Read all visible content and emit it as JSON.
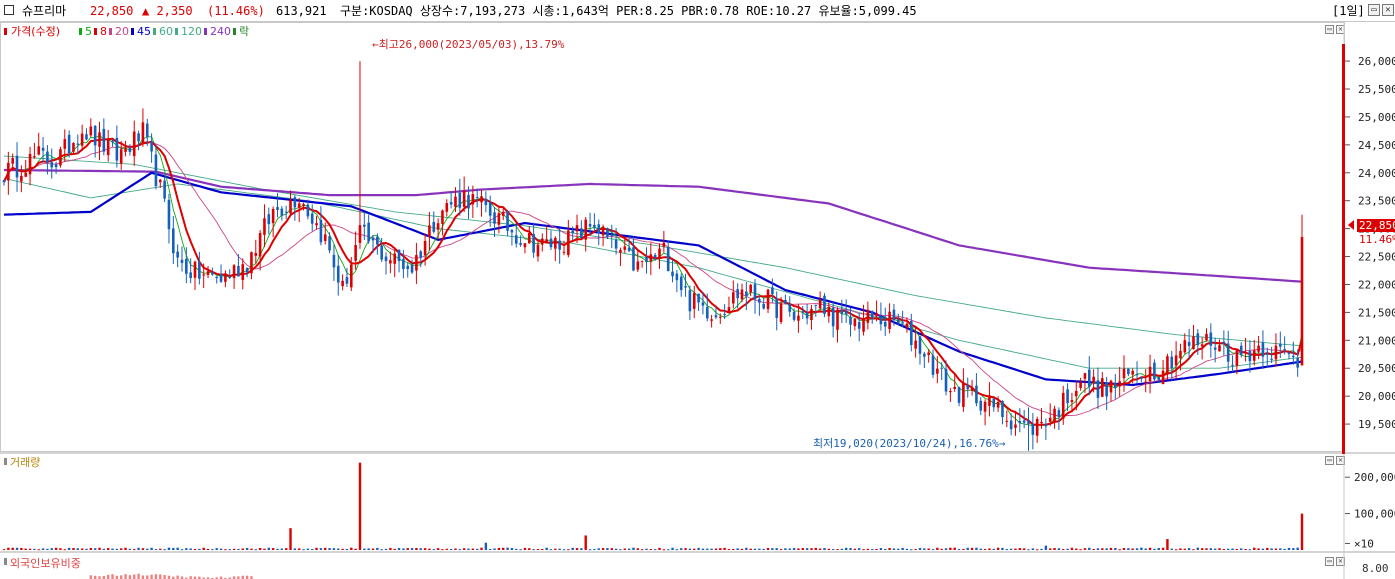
{
  "header": {
    "stock_name": "슈프리마",
    "price": "22,850",
    "change": "▲ 2,350",
    "change_pct": "(11.46%)",
    "volume": "613,921",
    "info": "구분:KOSDAQ 상장수:7,193,273 시총:1,643억 PER:8.25 PBR:0.78 ROE:10.27 유보율:5,099.45",
    "period": "[1일]"
  },
  "colors": {
    "up": "#dd0000",
    "down": "#1560bd",
    "ma5": "#11aa11",
    "ma20": "#cc4488",
    "ma45": "#0000cc",
    "ma60": "#44aa88",
    "ma240": "#8833bb",
    "current": "#dd0000",
    "accent_header": "#dd0000"
  },
  "chart_data": [
    {
      "type": "candlestick",
      "legend": [
        {
          "label": "가격(수정)",
          "color": "#dd0000"
        },
        {
          "label": "5",
          "color": "#11aa11"
        },
        {
          "label": "8",
          "color": "#dd0000"
        },
        {
          "label": "20",
          "color": "#cc4488"
        },
        {
          "label": "45",
          "color": "#0000cc"
        },
        {
          "label": "60",
          "color": "#44aa88"
        },
        {
          "label": "120",
          "color": "#44aa88"
        },
        {
          "label": "240",
          "color": "#8833bb"
        },
        {
          "label": "락",
          "color": "#228822"
        }
      ],
      "y_ticks": [
        "26,000",
        "25,500",
        "25,000",
        "24,500",
        "24,000",
        "23,500",
        "23,000",
        "22,500",
        "22,000",
        "21,500",
        "21,000",
        "20,500",
        "20,000",
        "19,500"
      ],
      "y_range": [
        19000,
        26700
      ],
      "current_price_label": "22,850",
      "current_pct_label": "11.46%",
      "high_annotation": "←최고26,000(2023/05/03),13.79%",
      "high_value": 26000,
      "low_annotation": "최저19,020(2023/10/24),16.76%→",
      "low_value": 19020,
      "anchors": [
        [
          0,
          24000
        ],
        [
          8,
          24300
        ],
        [
          12,
          24200
        ],
        [
          18,
          24800
        ],
        [
          26,
          24300
        ],
        [
          32,
          24700
        ],
        [
          36,
          23700
        ],
        [
          40,
          22400
        ],
        [
          44,
          22200
        ],
        [
          50,
          22100
        ],
        [
          56,
          22400
        ],
        [
          62,
          23300
        ],
        [
          68,
          23600
        ],
        [
          74,
          22800
        ],
        [
          78,
          21900
        ],
        [
          82,
          22900
        ],
        [
          88,
          22500
        ],
        [
          94,
          22300
        ],
        [
          100,
          23300
        ],
        [
          106,
          23600
        ],
        [
          112,
          23300
        ],
        [
          118,
          22900
        ],
        [
          124,
          22700
        ],
        [
          130,
          22800
        ],
        [
          136,
          23100
        ],
        [
          140,
          22700
        ],
        [
          146,
          22300
        ],
        [
          152,
          22600
        ],
        [
          158,
          21700
        ],
        [
          164,
          21500
        ],
        [
          170,
          21900
        ],
        [
          176,
          21700
        ],
        [
          182,
          21400
        ],
        [
          188,
          21600
        ],
        [
          194,
          21300
        ],
        [
          200,
          21400
        ],
        [
          206,
          21300
        ],
        [
          212,
          20800
        ],
        [
          218,
          20100
        ],
        [
          224,
          20000
        ],
        [
          230,
          19700
        ],
        [
          236,
          19400
        ],
        [
          242,
          19700
        ],
        [
          248,
          20300
        ],
        [
          254,
          20100
        ],
        [
          260,
          20400
        ],
        [
          266,
          20500
        ],
        [
          272,
          20900
        ],
        [
          278,
          21000
        ],
        [
          284,
          20700
        ],
        [
          290,
          20900
        ],
        [
          296,
          20700
        ],
        [
          299,
          20600
        ]
      ],
      "last_candle": {
        "open": 20550,
        "close": 22850,
        "high": 23250,
        "low": 20550
      },
      "ma_levels": {
        "ma45": [
          [
            0,
            23250
          ],
          [
            20,
            23300
          ],
          [
            34,
            24000
          ],
          [
            50,
            23650
          ],
          [
            80,
            23400
          ],
          [
            100,
            22800
          ],
          [
            120,
            23100
          ],
          [
            140,
            22900
          ],
          [
            160,
            22700
          ],
          [
            180,
            21900
          ],
          [
            200,
            21500
          ],
          [
            220,
            20800
          ],
          [
            240,
            20300
          ],
          [
            260,
            20200
          ],
          [
            280,
            20400
          ],
          [
            299,
            20620
          ]
        ],
        "ma240": [
          [
            0,
            24050
          ],
          [
            35,
            24020
          ],
          [
            50,
            23750
          ],
          [
            75,
            23600
          ],
          [
            95,
            23600
          ],
          [
            110,
            23700
          ],
          [
            135,
            23800
          ],
          [
            160,
            23750
          ],
          [
            190,
            23450
          ],
          [
            220,
            22700
          ],
          [
            250,
            22300
          ],
          [
            280,
            22150
          ],
          [
            299,
            22050
          ]
        ],
        "ma120": [
          [
            0,
            24300
          ],
          [
            30,
            24150
          ],
          [
            60,
            23700
          ],
          [
            90,
            23300
          ],
          [
            120,
            23050
          ],
          [
            150,
            22700
          ],
          [
            180,
            22300
          ],
          [
            210,
            21800
          ],
          [
            240,
            21400
          ],
          [
            270,
            21100
          ],
          [
            299,
            20900
          ]
        ],
        "ma60": [
          [
            0,
            23900
          ],
          [
            20,
            23550
          ],
          [
            40,
            23800
          ],
          [
            70,
            23500
          ],
          [
            100,
            23000
          ],
          [
            130,
            22750
          ],
          [
            160,
            22300
          ],
          [
            190,
            21650
          ],
          [
            220,
            21000
          ],
          [
            250,
            20500
          ],
          [
            280,
            20500
          ],
          [
            299,
            20700
          ]
        ]
      }
    },
    {
      "type": "bar",
      "title": "거래량",
      "y_ticks": [
        "200,000",
        "100,000",
        "×10"
      ],
      "y_range": [
        0,
        250000
      ],
      "spikes": [
        [
          66,
          60000
        ],
        [
          82,
          240000
        ],
        [
          134,
          40000
        ],
        [
          111,
          20000
        ],
        [
          240,
          12000
        ],
        [
          268,
          30000
        ],
        [
          299,
          100000
        ]
      ]
    },
    {
      "type": "bar",
      "title": "외국인보유비중",
      "y_ticks": [
        "8.00"
      ]
    }
  ]
}
